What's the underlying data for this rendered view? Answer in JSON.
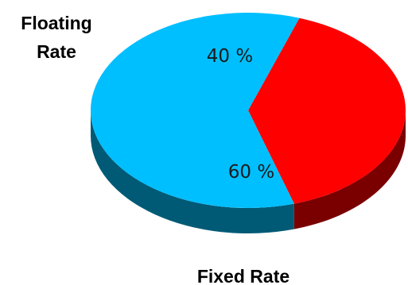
{
  "chart_data": {
    "type": "pie",
    "style": "3d",
    "categories": [
      "Floating Rate",
      "Fixed Rate"
    ],
    "values": [
      40,
      60
    ],
    "labels": [
      "40 %",
      "60 %"
    ],
    "colors": {
      "top": [
        "#ff0000",
        "#00bfff"
      ],
      "side": [
        "#7a0000",
        "#005a75"
      ]
    },
    "legend": {
      "floating_line1": "Floating",
      "floating_line2": "Rate",
      "fixed": "Fixed Rate"
    }
  }
}
